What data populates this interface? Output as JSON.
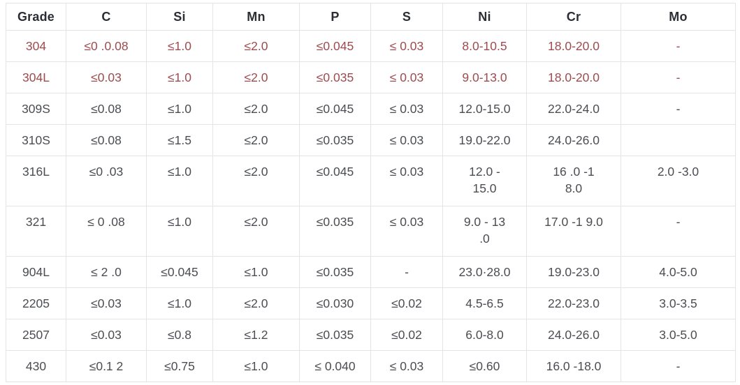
{
  "table": {
    "columns": [
      "Grade",
      "C",
      "Si",
      "Mn",
      "P",
      "S",
      "Ni",
      "Cr",
      "Mo"
    ],
    "rows": [
      {
        "highlight": true,
        "cells": [
          "304",
          "≤0 .0.08",
          "≤1.0",
          "≤2.0",
          "≤0.045",
          "≤ 0.03",
          "8.0-10.5",
          "18.0-20.0",
          "-"
        ]
      },
      {
        "highlight": true,
        "cells": [
          "304L",
          "≤0.03",
          "≤1.0",
          "≤2.0",
          "≤0.035",
          "≤ 0.03",
          "9.0-13.0",
          "18.0-20.0",
          "-"
        ]
      },
      {
        "highlight": false,
        "cells": [
          "309S",
          "≤0.08",
          "≤1.0",
          "≤2.0",
          "≤0.045",
          "≤ 0.03",
          "12.0-15.0",
          "22.0-24.0",
          "-"
        ]
      },
      {
        "highlight": false,
        "cells": [
          "310S",
          "≤0.08",
          "≤1.5",
          "≤2.0",
          "≤0.035",
          "≤ 0.03",
          "19.0-22.0",
          "24.0-26.0",
          ""
        ]
      },
      {
        "highlight": false,
        "cells": [
          "316L",
          "≤0 .03",
          "≤1.0",
          "≤2.0",
          "≤0.045",
          "≤ 0.03",
          "12.0 -\n15.0",
          "16 .0 -1\n8.0",
          "2.0 -3.0"
        ]
      },
      {
        "highlight": false,
        "cells": [
          "321",
          "≤ 0 .08",
          "≤1.0",
          "≤2.0",
          "≤0.035",
          "≤ 0.03",
          "9.0 - 13\n.0",
          "17.0 -1 9.0",
          "-"
        ]
      },
      {
        "highlight": false,
        "cells": [
          "904L",
          "≤ 2 .0",
          "≤0.045",
          "≤1.0",
          "≤0.035",
          "-",
          "23.0·28.0",
          "19.0-23.0",
          "4.0-5.0"
        ]
      },
      {
        "highlight": false,
        "cells": [
          "2205",
          "≤0.03",
          "≤1.0",
          "≤2.0",
          "≤0.030",
          "≤0.02",
          "4.5-6.5",
          "22.0-23.0",
          "3.0-3.5"
        ]
      },
      {
        "highlight": false,
        "cells": [
          "2507",
          "≤0.03",
          "≤0.8",
          "≤1.2",
          "≤0.035",
          "≤0.02",
          "6.0-8.0",
          "24.0-26.0",
          "3.0-5.0"
        ]
      },
      {
        "highlight": false,
        "cells": [
          "430",
          "≤0.1 2",
          "≤0.75",
          "≤1.0",
          "≤ 0.040",
          "≤ 0.03",
          "≤0.60",
          "16.0 -18.0",
          "-"
        ]
      }
    ]
  },
  "colors": {
    "highlight_text": "#a04a4e",
    "body_text": "#4b4d52",
    "header_text": "#2c2e33",
    "border": "#e3e4e6"
  }
}
